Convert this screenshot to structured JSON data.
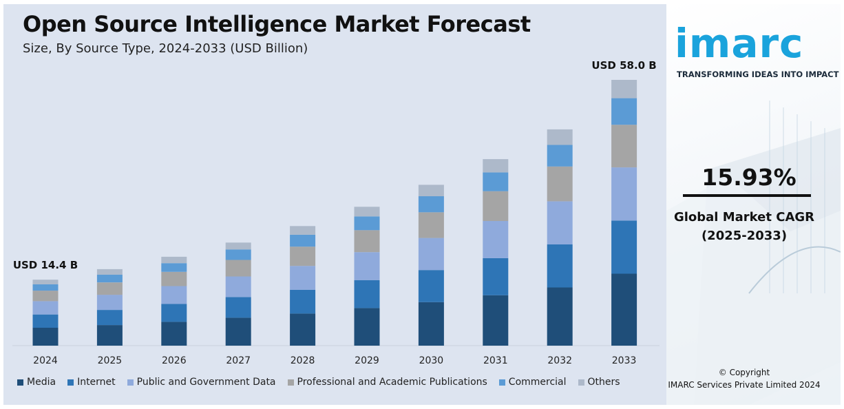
{
  "title": "Open Source Intelligence Market Forecast",
  "subtitle": "Size, By Source Type, 2024-2033 (USD Billion)",
  "brand": {
    "logo_text": "imarc",
    "tagline": "TRANSFORMING IDEAS INTO IMPACT"
  },
  "cagr": {
    "value": "15.93%",
    "label_line1": "Global Market CAGR",
    "label_line2": "(2025-2033)"
  },
  "copyright": {
    "line1": "© Copyright",
    "line2": "IMARC Services Private Limited 2024"
  },
  "colors": {
    "panel_background": "#dde4f0",
    "brand_blue": "#1aa3dc"
  },
  "chart_data": {
    "type": "bar",
    "stacked": true,
    "title": "Open Source Intelligence Market Forecast",
    "subtitle": "Size, By Source Type, 2024-2033 (USD Billion)",
    "categories": [
      "2024",
      "2025",
      "2026",
      "2027",
      "2028",
      "2029",
      "2030",
      "2031",
      "2032",
      "2033"
    ],
    "totals": [
      14.4,
      16.7,
      19.4,
      22.5,
      26.1,
      30.3,
      35.1,
      40.7,
      47.2,
      58.0
    ],
    "series": [
      {
        "name": "Media",
        "color": "#1f4e79",
        "values": [
          3.9,
          4.5,
          5.2,
          6.1,
          7.0,
          8.2,
          9.5,
          11.0,
          12.7,
          15.7
        ]
      },
      {
        "name": "Internet",
        "color": "#2e75b6",
        "values": [
          2.9,
          3.3,
          3.9,
          4.5,
          5.2,
          6.1,
          7.0,
          8.1,
          9.4,
          11.6
        ]
      },
      {
        "name": "Public and Government Data",
        "color": "#8faadc",
        "values": [
          2.9,
          3.3,
          3.9,
          4.5,
          5.2,
          6.1,
          7.0,
          8.1,
          9.4,
          11.6
        ]
      },
      {
        "name": "Professional and Academic Publications",
        "color": "#a5a5a5",
        "values": [
          2.3,
          2.7,
          3.1,
          3.6,
          4.2,
          4.8,
          5.6,
          6.5,
          7.6,
          9.3
        ]
      },
      {
        "name": "Commercial",
        "color": "#5b9bd5",
        "values": [
          1.4,
          1.7,
          1.9,
          2.3,
          2.6,
          3.0,
          3.5,
          4.1,
          4.7,
          5.8
        ]
      },
      {
        "name": "Others",
        "color": "#adb9ca",
        "values": [
          1.0,
          1.2,
          1.4,
          1.5,
          1.9,
          2.1,
          2.5,
          2.9,
          3.4,
          4.0
        ]
      }
    ],
    "annotations": [
      {
        "category": "2024",
        "text": "USD 14.4 B"
      },
      {
        "category": "2033",
        "text": "USD 58.0 B"
      }
    ],
    "ylim": [
      0,
      58
    ],
    "grid": false,
    "legend_position": "bottom"
  }
}
